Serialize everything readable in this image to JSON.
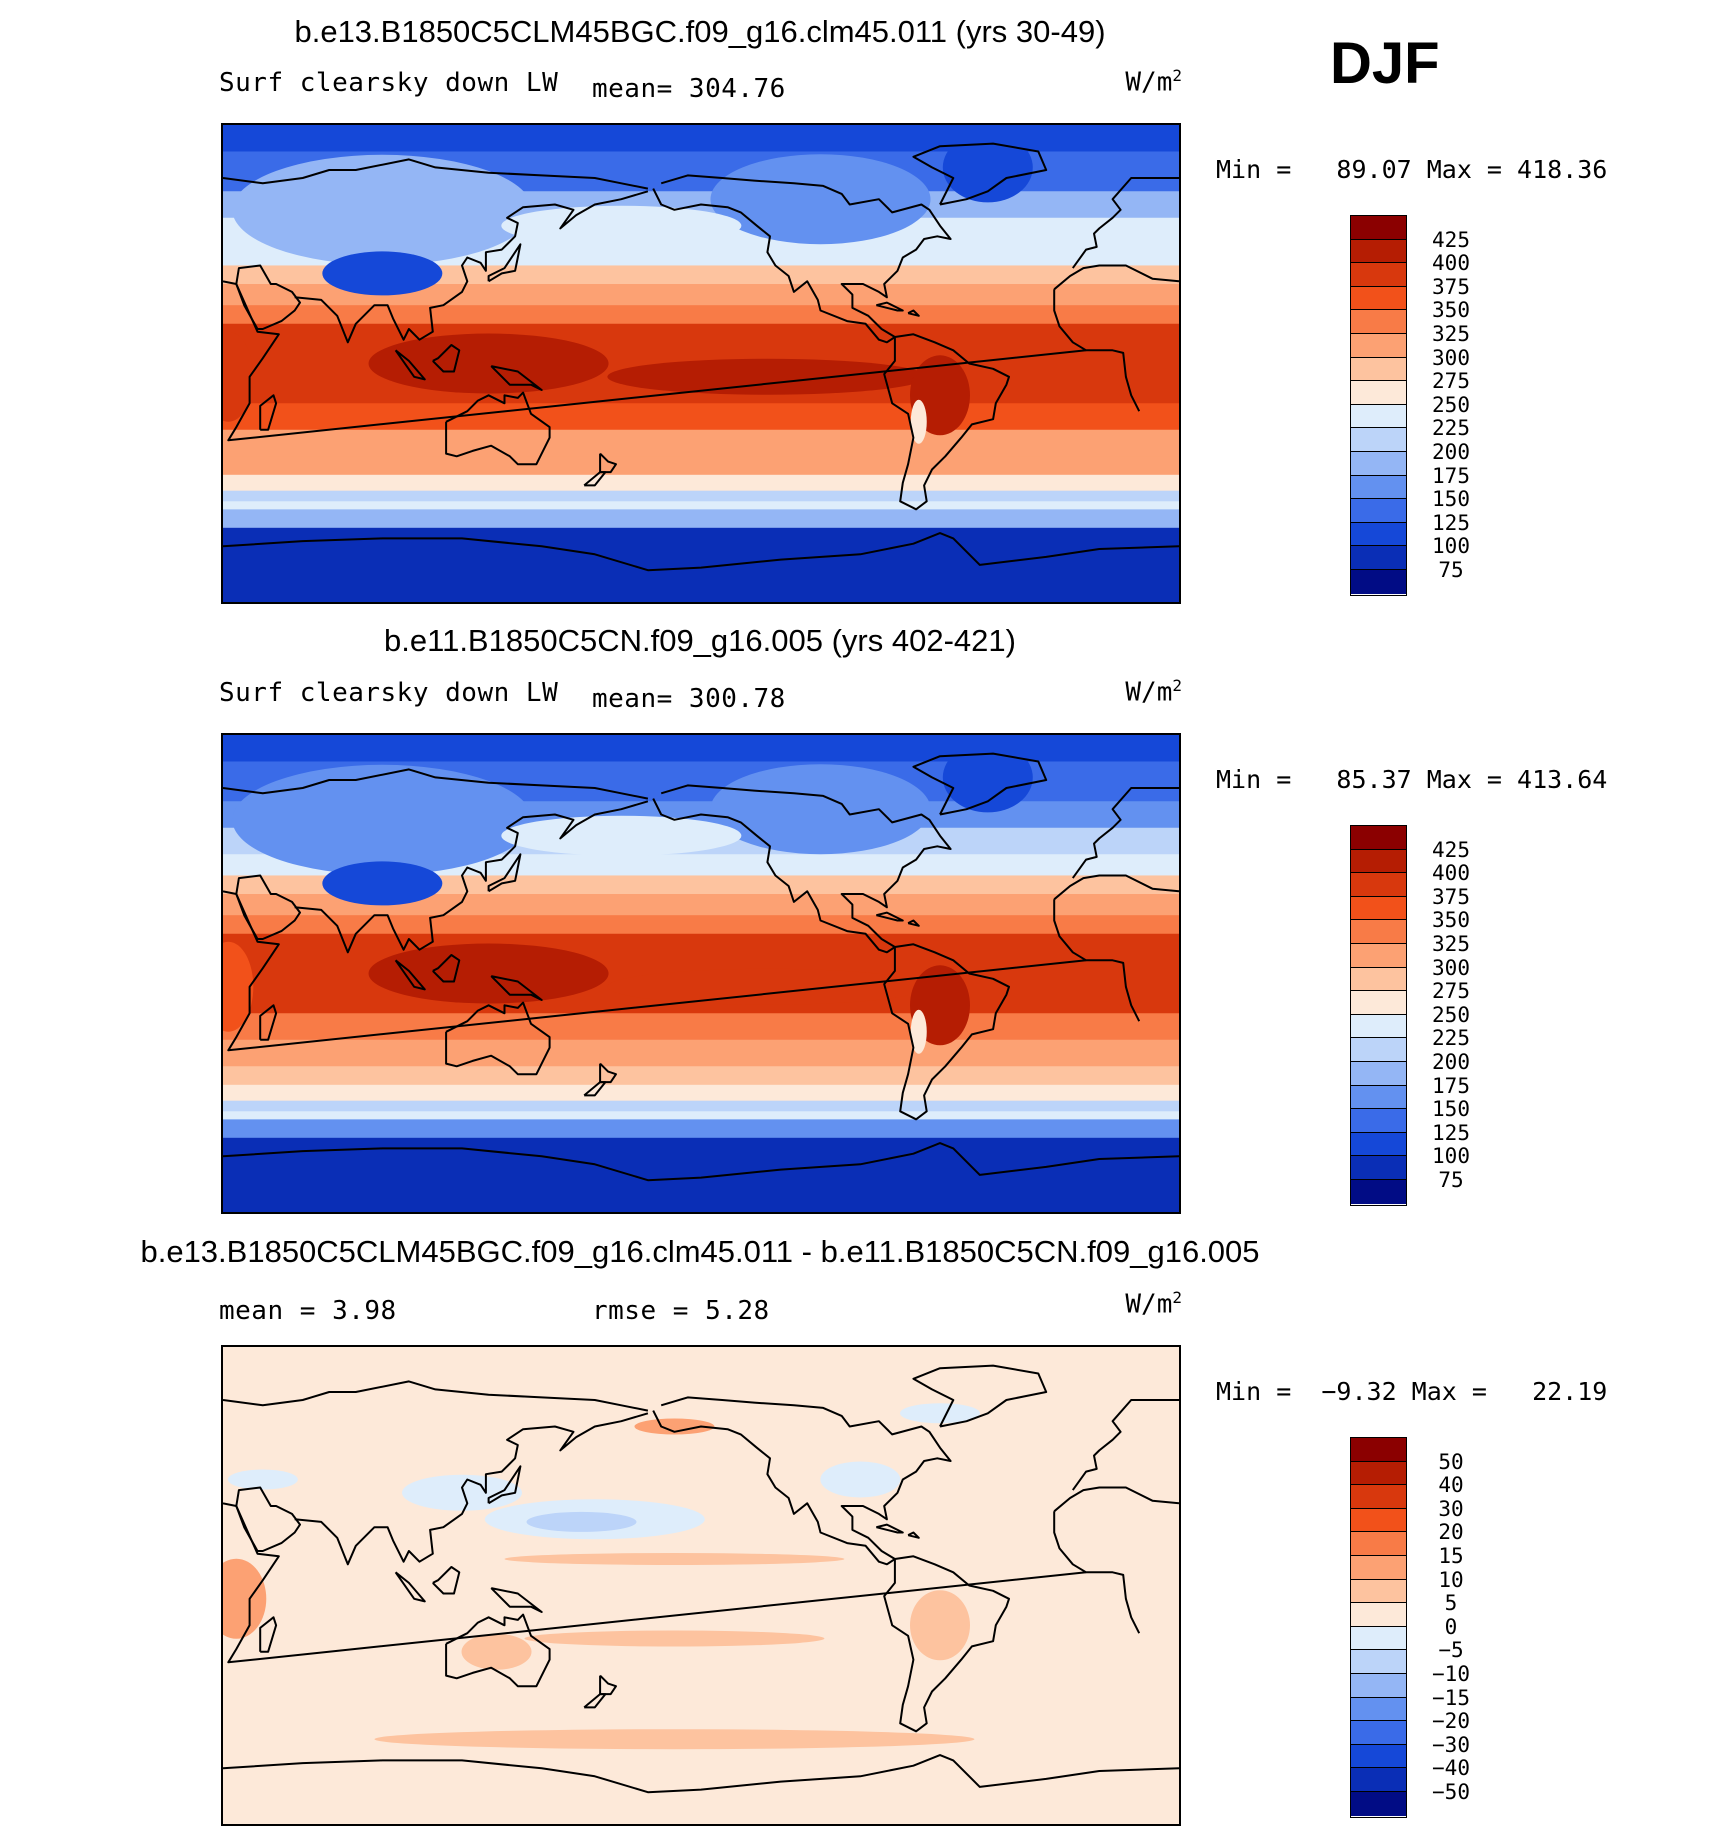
{
  "season": "DJF",
  "chart_data": [
    {
      "type": "heatmap",
      "title": "b.e13.B1850C5CLM45BGC.f09_g16.clm45.011 (yrs 30-49)",
      "variable": "Surf clearsky down LW",
      "mean_text": "mean= 304.76",
      "units_base": "W/m",
      "units_exp": "2",
      "min_max_text": "Min =   89.07 Max = 418.36",
      "min": 89.07,
      "max": 418.36,
      "mean": 304.76,
      "colorbar_levels": [
        "425",
        "400",
        "375",
        "350",
        "325",
        "300",
        "275",
        "250",
        "225",
        "200",
        "175",
        "150",
        "125",
        "100",
        "75"
      ],
      "colorbar_colors": [
        "#8b0000",
        "#b51d03",
        "#d8380d",
        "#f2511a",
        "#f87b47",
        "#fca173",
        "#fdc39f",
        "#fde9d9",
        "#deedfb",
        "#bcd4f9",
        "#94b6f5",
        "#6391f0",
        "#3a6be8",
        "#1548d8",
        "#0a2eb6",
        "#010c85"
      ],
      "regions": {
        "polar": 95,
        "subpolar": 175,
        "midlat_north": 245,
        "midlat_south": 260,
        "subtropic": 340,
        "tropic": 395,
        "eurasia_winter": 180,
        "tibet": 120,
        "greenland": 110,
        "warm_pool": 410
      }
    },
    {
      "type": "heatmap",
      "title": "b.e11.B1850C5CN.f09_g16.005 (yrs 402-421)",
      "variable": "Surf clearsky down LW",
      "mean_text": "mean= 300.78",
      "units_base": "W/m",
      "units_exp": "2",
      "min_max_text": "Min =   85.37 Max = 413.64",
      "min": 85.37,
      "max": 413.64,
      "mean": 300.78,
      "colorbar_levels": [
        "425",
        "400",
        "375",
        "350",
        "325",
        "300",
        "275",
        "250",
        "225",
        "200",
        "175",
        "150",
        "125",
        "100",
        "75"
      ],
      "colorbar_colors": [
        "#8b0000",
        "#b51d03",
        "#d8380d",
        "#f2511a",
        "#f87b47",
        "#fca173",
        "#fdc39f",
        "#fde9d9",
        "#deedfb",
        "#bcd4f9",
        "#94b6f5",
        "#6391f0",
        "#3a6be8",
        "#1548d8",
        "#0a2eb6",
        "#010c85"
      ],
      "regions": {
        "polar": 90,
        "subpolar": 170,
        "midlat_north": 235,
        "midlat_south": 255,
        "subtropic": 335,
        "tropic": 390,
        "eurasia_winter": 170,
        "tibet": 115,
        "greenland": 105,
        "warm_pool": 405
      }
    },
    {
      "type": "heatmap",
      "title": "b.e13.B1850C5CLM45BGC.f09_g16.clm45.011 - b.e11.B1850C5CN.f09_g16.005",
      "mean_text": "mean =    3.98",
      "rmse_text": "rmse =    5.28",
      "units_base": "W/m",
      "units_exp": "2",
      "min_max_text": "Min =  −9.32 Max =   22.19",
      "min": -9.32,
      "max": 22.19,
      "mean": 3.98,
      "rmse": 5.28,
      "colorbar_levels": [
        "50",
        "40",
        "30",
        "20",
        "15",
        "10",
        "5",
        "0",
        "−5",
        "−10",
        "−15",
        "−20",
        "−30",
        "−40",
        "−50"
      ],
      "colorbar_colors": [
        "#8b0000",
        "#b51d03",
        "#d8380d",
        "#f2511a",
        "#f87b47",
        "#fca173",
        "#fdc39f",
        "#fde9d9",
        "#deedfb",
        "#bcd4f9",
        "#94b6f5",
        "#6391f0",
        "#3a6be8",
        "#1548d8",
        "#0a2eb6",
        "#010c85"
      ],
      "regions": {
        "background": 4,
        "north_pacific": -5,
        "east_asia": -3,
        "africa": 10,
        "south_america": 8,
        "australia": 8,
        "n_america_east": -3
      }
    }
  ]
}
